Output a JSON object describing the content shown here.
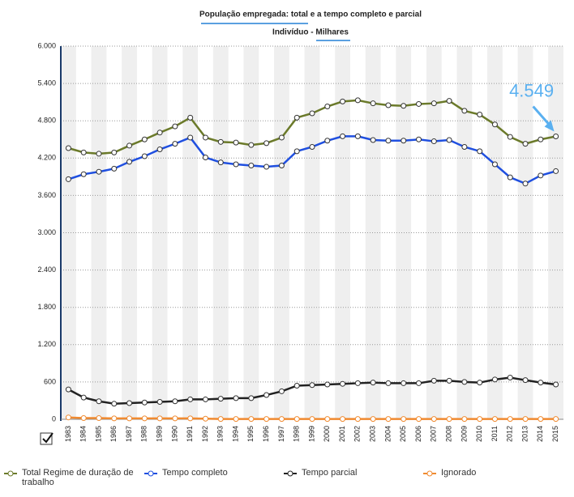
{
  "chart_data": {
    "type": "line",
    "title": "População empregada: total e a tempo completo e parcial",
    "subtitle": "Indivíduo - Milhares",
    "annotation": "4.549",
    "categories": [
      "1983",
      "1984",
      "1985",
      "1986",
      "1987",
      "1988",
      "1989",
      "1990",
      "1991",
      "1992",
      "1993",
      "1994",
      "1995",
      "1996",
      "1997",
      "1998",
      "1999",
      "2000",
      "2001",
      "2002",
      "2003",
      "2004",
      "2005",
      "2006",
      "2007",
      "2008",
      "2009",
      "2010",
      "2011",
      "2012",
      "2013",
      "2014",
      "2015"
    ],
    "ylim": [
      0,
      6000
    ],
    "yticks": [
      0,
      600,
      {
        "value": 1200,
        "label": "1.200"
      },
      {
        "value": 1800,
        "label": "1.800"
      },
      {
        "value": 2400,
        "label": "2.400"
      },
      {
        "value": 3000,
        "label": "3.000"
      },
      {
        "value": 3600,
        "label": "3.600"
      },
      {
        "value": 4200,
        "label": "4.200"
      },
      {
        "value": 4800,
        "label": "4.800"
      },
      {
        "value": 5400,
        "label": "5.400"
      },
      {
        "value": 6000,
        "label": "6.000"
      }
    ],
    "grid": true,
    "series": [
      {
        "name": "Total Regime de duração de trabalho",
        "color": "#6b7a2a",
        "values": [
          4360,
          4290,
          4270,
          4290,
          4400,
          4500,
          4610,
          4710,
          4850,
          4530,
          4460,
          4450,
          4410,
          4440,
          4530,
          4850,
          4920,
          5030,
          5110,
          5130,
          5080,
          5050,
          5040,
          5070,
          5080,
          5120,
          4960,
          4900,
          4740,
          4540,
          4430,
          4500,
          4549
        ]
      },
      {
        "name": "Tempo completo",
        "color": "#1f4fe0",
        "values": [
          3860,
          3940,
          3980,
          4030,
          4140,
          4230,
          4340,
          4430,
          4530,
          4210,
          4130,
          4100,
          4080,
          4060,
          4080,
          4310,
          4380,
          4480,
          4550,
          4550,
          4490,
          4480,
          4480,
          4500,
          4470,
          4490,
          4380,
          4310,
          4100,
          3890,
          3790,
          3920,
          3990
        ]
      },
      {
        "name": "Tempo parcial",
        "color": "#222222",
        "values": [
          480,
          350,
          290,
          250,
          260,
          270,
          280,
          290,
          320,
          320,
          330,
          340,
          340,
          390,
          450,
          540,
          550,
          560,
          570,
          580,
          590,
          580,
          580,
          580,
          620,
          620,
          600,
          590,
          640,
          670,
          630,
          590,
          560
        ]
      },
      {
        "name": "Ignorado",
        "color": "#f08a30",
        "values": [
          30,
          20,
          20,
          15,
          15,
          15,
          15,
          15,
          15,
          10,
          5,
          5,
          5,
          5,
          5,
          5,
          5,
          5,
          5,
          5,
          5,
          5,
          5,
          5,
          5,
          5,
          5,
          5,
          5,
          5,
          5,
          5,
          5
        ]
      }
    ]
  }
}
